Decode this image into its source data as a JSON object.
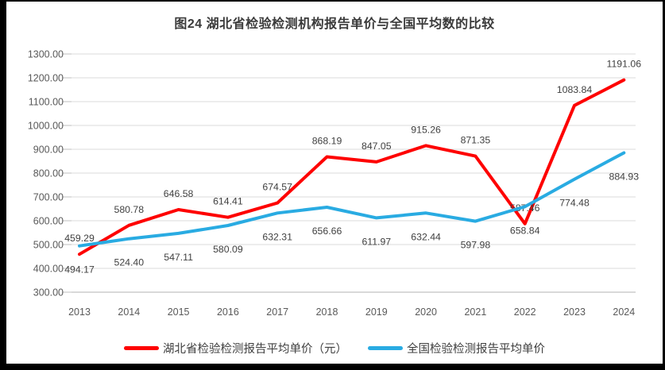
{
  "title": "图24 湖北省检验检测机构报告单价与全国平均数的比较",
  "chart_data": {
    "type": "line",
    "categories": [
      "2013",
      "2014",
      "2015",
      "2016",
      "2017",
      "2018",
      "2019",
      "2020",
      "2021",
      "2022",
      "2023",
      "2024"
    ],
    "series": [
      {
        "name": "湖北省检验检测报告平均单价（元）",
        "color": "#fe0000",
        "label_position": "above",
        "values": [
          459.29,
          580.78,
          646.58,
          614.41,
          674.57,
          868.19,
          847.05,
          915.26,
          871.35,
          587.46,
          1083.84,
          1191.06
        ]
      },
      {
        "name": "全国检验检测报告平均单价",
        "color": "#29abe2",
        "label_position": "below",
        "values": [
          494.17,
          524.4,
          547.11,
          580.09,
          632.31,
          656.66,
          611.97,
          632.44,
          597.98,
          658.84,
          774.48,
          884.93
        ]
      }
    ],
    "ylim": [
      300,
      1300
    ],
    "ytick_step": 100,
    "ytick_decimals": 2,
    "grid": "horizontal",
    "legend_position": "bottom",
    "colors": {
      "gridline": "#dbdbdb",
      "axis_line": "#b3b3b3",
      "tick": "#bfbfbf",
      "axis_text": "#595959",
      "data_label_text": "#404040"
    }
  }
}
